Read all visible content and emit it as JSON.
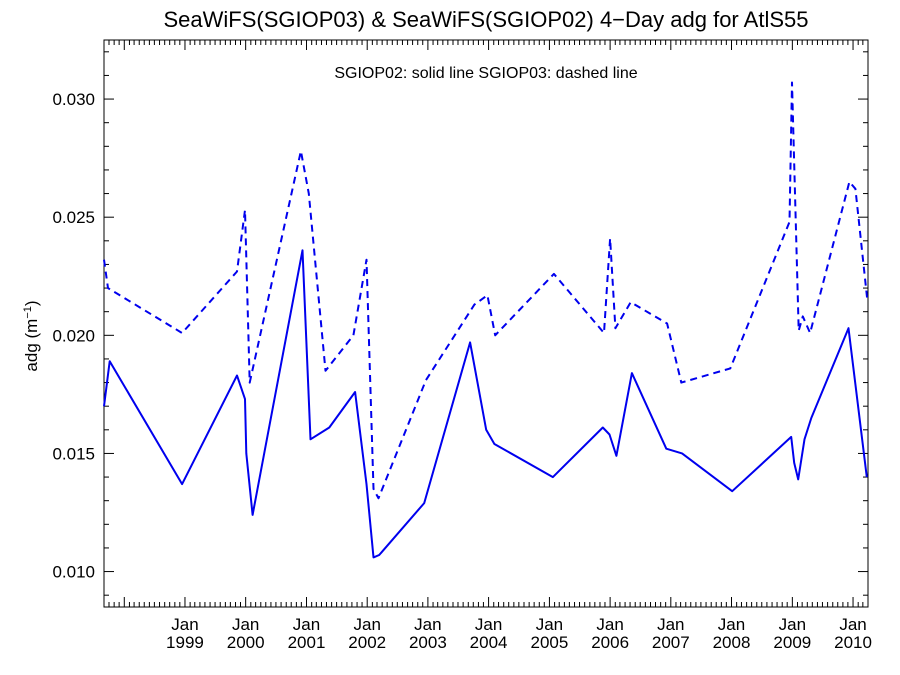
{
  "chart_data": {
    "type": "line",
    "title": "SeaWiFS(SGIOP03) & SeaWiFS(SGIOP02) 4−Day adg for AtlS55",
    "ylabel": "adg (m⁻¹)",
    "ylabel_base": "adg (m",
    "ylabel_exp": "−1",
    "ylabel_close": ")",
    "xlabel": "",
    "legend_text": "SGIOP02: solid line   SGIOP03: dashed line",
    "xlim": [
      "1997-09-01",
      "2010-04-01"
    ],
    "ylim": [
      0.0085,
      0.0325
    ],
    "y_ticks": [
      "0.010",
      "0.015",
      "0.020",
      "0.025",
      "0.030"
    ],
    "x_ticks": [
      {
        "date": "1999-01-01",
        "month": "Jan",
        "year": "1999"
      },
      {
        "date": "2000-01-01",
        "month": "Jan",
        "year": "2000"
      },
      {
        "date": "2001-01-01",
        "month": "Jan",
        "year": "2001"
      },
      {
        "date": "2002-01-01",
        "month": "Jan",
        "year": "2002"
      },
      {
        "date": "2003-01-01",
        "month": "Jan",
        "year": "2003"
      },
      {
        "date": "2004-01-01",
        "month": "Jan",
        "year": "2004"
      },
      {
        "date": "2005-01-01",
        "month": "Jan",
        "year": "2005"
      },
      {
        "date": "2006-01-01",
        "month": "Jan",
        "year": "2006"
      },
      {
        "date": "2007-01-01",
        "month": "Jan",
        "year": "2007"
      },
      {
        "date": "2008-01-01",
        "month": "Jan",
        "year": "2008"
      },
      {
        "date": "2009-01-01",
        "month": "Jan",
        "year": "2009"
      },
      {
        "date": "2010-01-01",
        "month": "Jan",
        "year": "2010"
      }
    ],
    "grid": false,
    "colors": {
      "series": "#0000ee",
      "axis": "#000000",
      "background": "#ffffff"
    },
    "series": [
      {
        "name": "SGIOP02",
        "style": "solid",
        "points": [
          {
            "x": "1997-09-01",
            "y": 0.017
          },
          {
            "x": "1997-10-05",
            "y": 0.0189
          },
          {
            "x": "1998-12-15",
            "y": 0.0137
          },
          {
            "x": "1999-11-10",
            "y": 0.0183
          },
          {
            "x": "1999-12-28",
            "y": 0.0173
          },
          {
            "x": "2000-01-05",
            "y": 0.015
          },
          {
            "x": "2000-02-12",
            "y": 0.0124
          },
          {
            "x": "2000-12-08",
            "y": 0.0236
          },
          {
            "x": "2001-01-25",
            "y": 0.0156
          },
          {
            "x": "2001-05-18",
            "y": 0.0161
          },
          {
            "x": "2001-10-20",
            "y": 0.0176
          },
          {
            "x": "2001-12-28",
            "y": 0.0137
          },
          {
            "x": "2002-02-08",
            "y": 0.0106
          },
          {
            "x": "2002-03-14",
            "y": 0.0107
          },
          {
            "x": "2002-12-10",
            "y": 0.0129
          },
          {
            "x": "2003-09-12",
            "y": 0.0197
          },
          {
            "x": "2003-12-18",
            "y": 0.016
          },
          {
            "x": "2004-02-05",
            "y": 0.0154
          },
          {
            "x": "2005-01-22",
            "y": 0.014
          },
          {
            "x": "2005-11-18",
            "y": 0.0161
          },
          {
            "x": "2005-12-28",
            "y": 0.0158
          },
          {
            "x": "2006-02-08",
            "y": 0.0149
          },
          {
            "x": "2006-05-12",
            "y": 0.0184
          },
          {
            "x": "2006-12-05",
            "y": 0.0152
          },
          {
            "x": "2007-03-10",
            "y": 0.015
          },
          {
            "x": "2008-01-05",
            "y": 0.0134
          },
          {
            "x": "2008-12-25",
            "y": 0.0157
          },
          {
            "x": "2009-01-12",
            "y": 0.0146
          },
          {
            "x": "2009-02-05",
            "y": 0.0139
          },
          {
            "x": "2009-03-15",
            "y": 0.0156
          },
          {
            "x": "2009-04-25",
            "y": 0.0165
          },
          {
            "x": "2009-12-05",
            "y": 0.0203
          },
          {
            "x": "2010-03-25",
            "y": 0.014
          }
        ]
      },
      {
        "name": "SGIOP03",
        "style": "dashed",
        "points": [
          {
            "x": "1997-09-01",
            "y": 0.0232
          },
          {
            "x": "1997-09-25",
            "y": 0.022
          },
          {
            "x": "1998-12-15",
            "y": 0.0201
          },
          {
            "x": "1999-11-10",
            "y": 0.0227
          },
          {
            "x": "1999-12-28",
            "y": 0.0253
          },
          {
            "x": "2000-01-25",
            "y": 0.018
          },
          {
            "x": "2000-11-28",
            "y": 0.0278
          },
          {
            "x": "2001-01-15",
            "y": 0.026
          },
          {
            "x": "2001-04-25",
            "y": 0.0185
          },
          {
            "x": "2001-10-10",
            "y": 0.02
          },
          {
            "x": "2001-12-28",
            "y": 0.0232
          },
          {
            "x": "2002-02-08",
            "y": 0.0135
          },
          {
            "x": "2002-03-10",
            "y": 0.0131
          },
          {
            "x": "2002-12-20",
            "y": 0.0181
          },
          {
            "x": "2003-10-08",
            "y": 0.0213
          },
          {
            "x": "2003-12-25",
            "y": 0.0217
          },
          {
            "x": "2004-02-10",
            "y": 0.02
          },
          {
            "x": "2005-01-28",
            "y": 0.0226
          },
          {
            "x": "2005-11-25",
            "y": 0.0201
          },
          {
            "x": "2006-01-01",
            "y": 0.0241
          },
          {
            "x": "2006-02-02",
            "y": 0.0203
          },
          {
            "x": "2006-05-05",
            "y": 0.0214
          },
          {
            "x": "2006-12-10",
            "y": 0.0205
          },
          {
            "x": "2007-03-05",
            "y": 0.018
          },
          {
            "x": "2007-12-25",
            "y": 0.0186
          },
          {
            "x": "2008-12-15",
            "y": 0.0248
          },
          {
            "x": "2008-12-30",
            "y": 0.0307
          },
          {
            "x": "2009-02-08",
            "y": 0.0202
          },
          {
            "x": "2009-03-05",
            "y": 0.0208
          },
          {
            "x": "2009-04-18",
            "y": 0.0201
          },
          {
            "x": "2009-12-10",
            "y": 0.0265
          },
          {
            "x": "2010-01-15",
            "y": 0.0262
          },
          {
            "x": "2010-03-28",
            "y": 0.0215
          }
        ]
      }
    ]
  }
}
